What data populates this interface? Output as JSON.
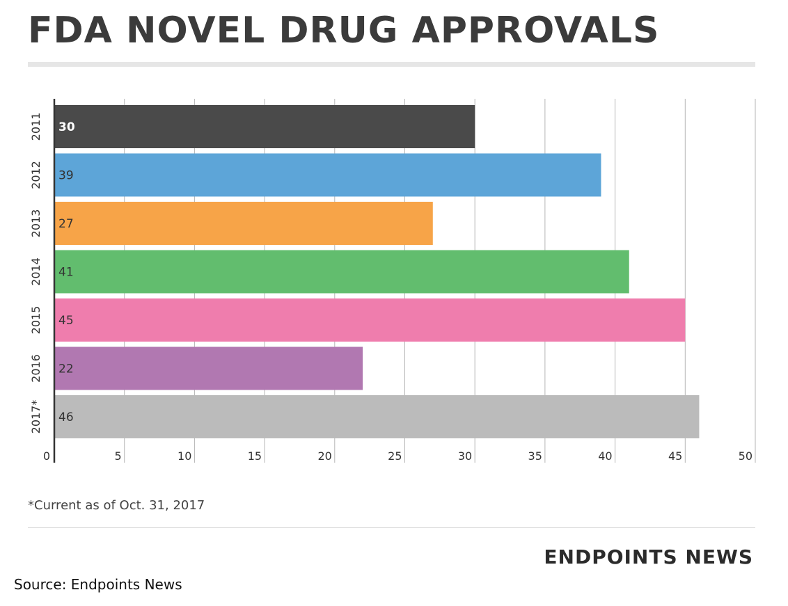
{
  "header": {
    "title": "FDA NOVEL DRUG APPROVALS"
  },
  "footer": {
    "footnote": "*Current as of Oct. 31, 2017",
    "brand": "ENDPOINTS NEWS",
    "source": "Source: Endpoints News"
  },
  "chart_data": {
    "type": "bar",
    "orientation": "horizontal",
    "categories": [
      "2011",
      "2012",
      "2013",
      "2014",
      "2015",
      "2016",
      "2017*"
    ],
    "values": [
      30,
      39,
      27,
      41,
      45,
      22,
      46
    ],
    "colors": [
      "#4a4a4a",
      "#5da5d8",
      "#f7a448",
      "#62bd6e",
      "#ef7dad",
      "#b178b1",
      "#bbbbbb"
    ],
    "label_colors": [
      "#ffffff",
      "#333333",
      "#333333",
      "#333333",
      "#333333",
      "#333333",
      "#333333"
    ],
    "xlim": [
      0,
      50
    ],
    "xticks": [
      0,
      5,
      10,
      15,
      20,
      25,
      30,
      35,
      40,
      45,
      50
    ],
    "grid": true
  }
}
